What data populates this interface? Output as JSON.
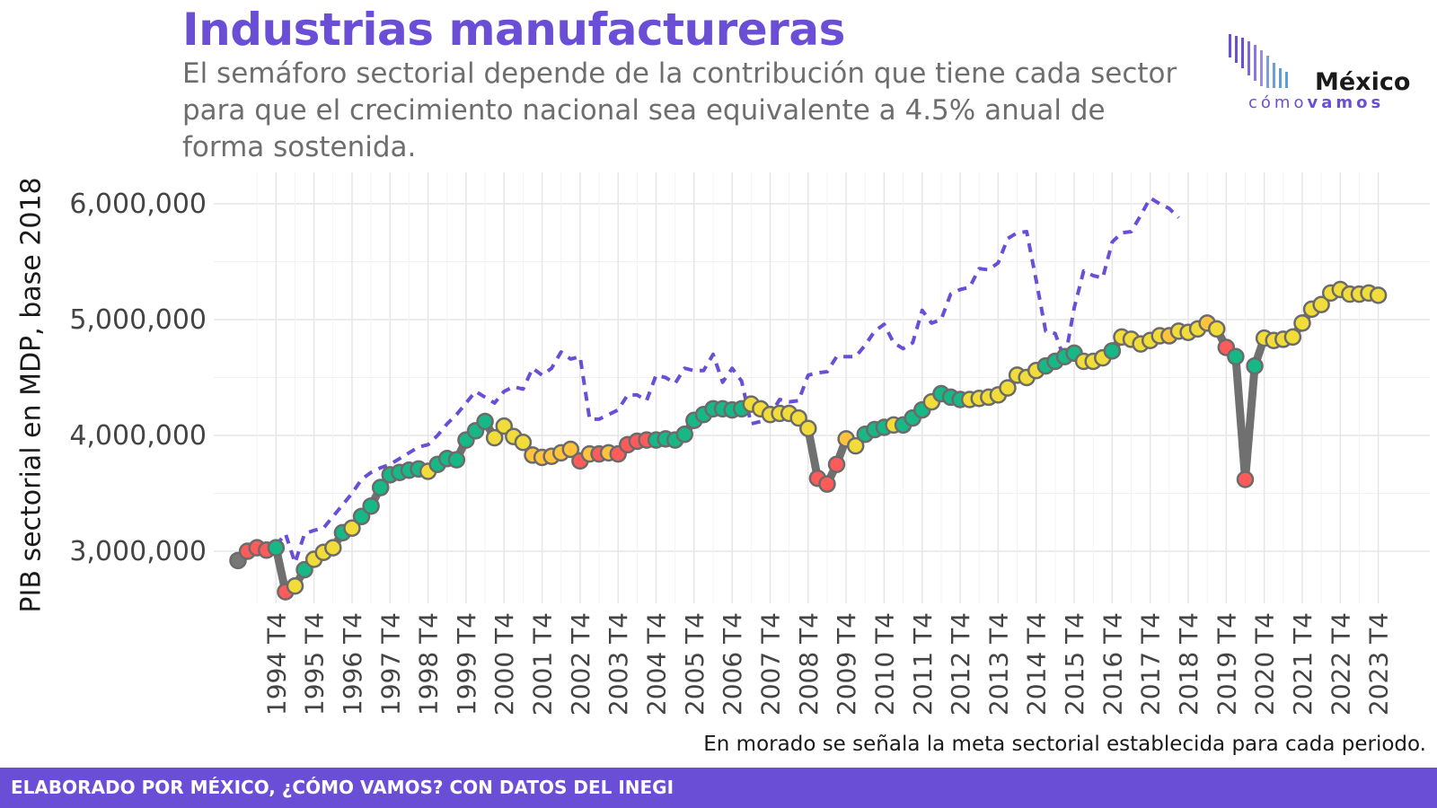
{
  "header": {
    "title": "Industrias manufactureras",
    "subtitle": "El semáforo sectorial depende de la contribución que tiene cada sector para que el crecimiento nacional sea equivalente a 4.5% anual de forma sostenida."
  },
  "logo": {
    "word1": "México",
    "word2a": "cómo",
    "word2b": "vamos"
  },
  "note": "En morado se señala la meta sectorial establecida para cada periodo.",
  "footer": {
    "text": "ELABORADO POR MÉXICO, ¿CÓMO VAMOS? CON DATOS DEL INEGI"
  },
  "colors": {
    "accent": "#6a4fd6",
    "actual_line": "#707070",
    "rojo": "#ff5b5b",
    "amarillo": "#f2dc3a",
    "naranja": "#ffc33d",
    "verde": "#17b886",
    "gris": "#777777"
  },
  "chart_data": {
    "type": "line",
    "ylabel": "PIB sectorial en MDP, base 2018",
    "xlabel": "",
    "ylim": [
      2500000,
      6100000
    ],
    "yticks": [
      3000000,
      4000000,
      5000000,
      6000000
    ],
    "ytick_labels": [
      "3,000,000",
      "4,000,000",
      "5,000,000",
      "6,000,000"
    ],
    "grid": true,
    "x_start": "1993 T4",
    "xtick_labels": [
      "1994 T4",
      "1995 T4",
      "1996 T4",
      "1997 T4",
      "1998 T4",
      "1999 T4",
      "2000 T4",
      "2001 T4",
      "2002 T4",
      "2003 T4",
      "2004 T4",
      "2005 T4",
      "2006 T4",
      "2007 T4",
      "2008 T4",
      "2009 T4",
      "2010 T4",
      "2011 T4",
      "2012 T4",
      "2013 T4",
      "2014 T4",
      "2015 T4",
      "2016 T4",
      "2017 T4",
      "2018 T4",
      "2019 T4",
      "2020 T4",
      "2021 T4",
      "2022 T4",
      "2023 T4"
    ],
    "series": [
      {
        "key": "actual",
        "values": [
          2920000,
          3000000,
          3030000,
          3010000,
          3030000,
          2650000,
          2700000,
          2840000,
          2930000,
          2990000,
          3030000,
          3160000,
          3200000,
          3300000,
          3390000,
          3550000,
          3660000,
          3680000,
          3700000,
          3710000,
          3690000,
          3750000,
          3800000,
          3790000,
          3960000,
          4040000,
          4120000,
          3980000,
          4080000,
          3990000,
          3940000,
          3830000,
          3810000,
          3820000,
          3850000,
          3880000,
          3780000,
          3840000,
          3840000,
          3850000,
          3840000,
          3920000,
          3950000,
          3960000,
          3960000,
          3970000,
          3960000,
          4010000,
          4130000,
          4180000,
          4230000,
          4230000,
          4220000,
          4230000,
          4270000,
          4230000,
          4180000,
          4190000,
          4190000,
          4150000,
          4060000,
          3630000,
          3580000,
          3750000,
          3970000,
          3910000,
          4010000,
          4050000,
          4070000,
          4090000,
          4090000,
          4150000,
          4220000,
          4290000,
          4360000,
          4330000,
          4310000,
          4310000,
          4320000,
          4330000,
          4350000,
          4410000,
          4520000,
          4500000,
          4560000,
          4600000,
          4640000,
          4680000,
          4710000,
          4640000,
          4640000,
          4670000,
          4730000,
          4850000,
          4830000,
          4790000,
          4820000,
          4860000,
          4860000,
          4900000,
          4890000,
          4920000,
          4970000,
          4920000,
          4760000,
          4680000,
          3620000,
          4600000,
          4840000,
          4820000,
          4830000,
          4850000,
          4970000,
          5090000,
          5130000,
          5230000,
          5260000,
          5220000,
          5220000,
          5230000,
          5210000
        ],
        "status": [
          "gris",
          "rojo",
          "rojo",
          "rojo",
          "verde",
          "rojo",
          "amarillo",
          "verde",
          "amarillo",
          "amarillo",
          "amarillo",
          "verde",
          "amarillo",
          "verde",
          "verde",
          "verde",
          "verde",
          "verde",
          "verde",
          "verde",
          "amarillo",
          "verde",
          "verde",
          "verde",
          "verde",
          "verde",
          "verde",
          "amarillo",
          "amarillo",
          "amarillo",
          "amarillo",
          "naranja",
          "naranja",
          "naranja",
          "naranja",
          "naranja",
          "rojo",
          "naranja",
          "rojo",
          "naranja",
          "rojo",
          "rojo",
          "rojo",
          "rojo",
          "verde",
          "verde",
          "verde",
          "verde",
          "verde",
          "verde",
          "verde",
          "verde",
          "verde",
          "verde",
          "amarillo",
          "amarillo",
          "amarillo",
          "amarillo",
          "amarillo",
          "amarillo",
          "amarillo",
          "rojo",
          "rojo",
          "rojo",
          "naranja",
          "amarillo",
          "verde",
          "verde",
          "verde",
          "amarillo",
          "verde",
          "verde",
          "verde",
          "amarillo",
          "verde",
          "verde",
          "verde",
          "amarillo",
          "amarillo",
          "amarillo",
          "amarillo",
          "amarillo",
          "amarillo",
          "amarillo",
          "amarillo",
          "verde",
          "verde",
          "verde",
          "verde",
          "amarillo",
          "amarillo",
          "amarillo",
          "verde",
          "amarillo",
          "amarillo",
          "amarillo",
          "amarillo",
          "amarillo",
          "naranja",
          "amarillo",
          "amarillo",
          "amarillo",
          "naranja",
          "amarillo",
          "rojo",
          "verde",
          "rojo",
          "verde",
          "amarillo",
          "amarillo",
          "amarillo",
          "amarillo",
          "amarillo",
          "amarillo",
          "amarillo",
          "amarillo",
          "amarillo",
          "amarillo",
          "amarillo",
          "amarillo",
          "amarillo"
        ]
      },
      {
        "key": "meta",
        "start_index": 4,
        "style": "dashed",
        "values": [
          3050000,
          3150000,
          2900000,
          3150000,
          3180000,
          3200000,
          3300000,
          3400000,
          3500000,
          3620000,
          3680000,
          3720000,
          3750000,
          3800000,
          3850000,
          3900000,
          3920000,
          4000000,
          4100000,
          4180000,
          4280000,
          4380000,
          4330000,
          4280000,
          4380000,
          4420000,
          4400000,
          4580000,
          4520000,
          4580000,
          4720000,
          4660000,
          4680000,
          4140000,
          4140000,
          4180000,
          4220000,
          4350000,
          4350000,
          4300000,
          4520000,
          4500000,
          4450000,
          4580000,
          4560000,
          4560000,
          4700000,
          4460000,
          4580000,
          4470000,
          4100000,
          4120000,
          4180000,
          4310000,
          4290000,
          4300000,
          4520000,
          4540000,
          4550000,
          4680000,
          4680000,
          4680000,
          4780000,
          4900000,
          4960000,
          4800000,
          4750000,
          4800000,
          5080000,
          4970000,
          5000000,
          5220000,
          5260000,
          5280000,
          5440000,
          5430000,
          5490000,
          5700000,
          5750000,
          5760000,
          5340000,
          4900000,
          4880000,
          4650000,
          5100000,
          5420000,
          5380000,
          5360000,
          5670000,
          5750000,
          5760000,
          5900000,
          6050000,
          6000000,
          5960000,
          5880000
        ]
      }
    ]
  }
}
